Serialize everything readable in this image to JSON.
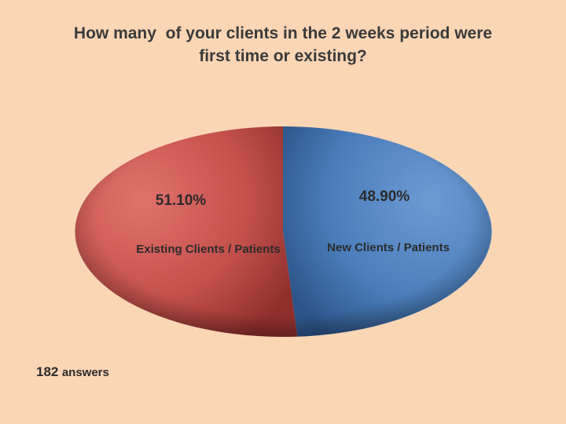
{
  "title_line1": "How many  of your clients in the 2 weeks period were",
  "title_line2": "first time or existing?",
  "footer": {
    "count": "182",
    "label": "answers"
  },
  "colors": {
    "background": "#fbd6b5",
    "existing": "#c4504c",
    "new": "#4a7ebb"
  },
  "chart_data": {
    "type": "pie",
    "title": "How many  of your clients in the 2 weeks period were first time or existing?",
    "slices": [
      {
        "label": "New Clients / Patients",
        "value": 48.9,
        "display": "48.90%",
        "color": "#4a7ebb"
      },
      {
        "label": "Existing Clients / Patients",
        "value": 51.1,
        "display": "51.10%",
        "color": "#c4504c"
      }
    ]
  }
}
